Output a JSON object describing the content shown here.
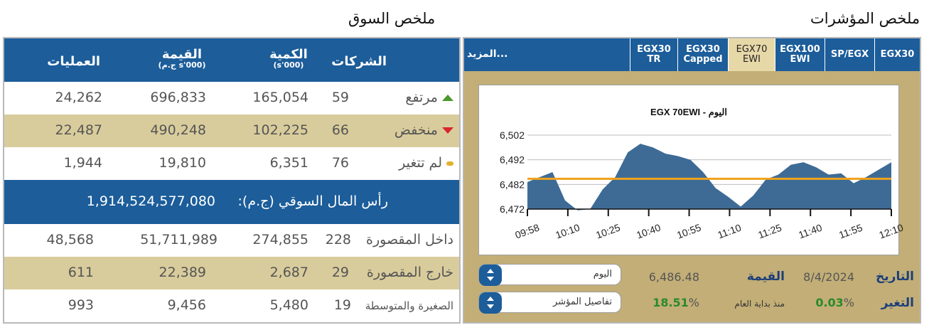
{
  "market_summary": {
    "title": "ملخص السوق",
    "headers": {
      "companies": "الشركات",
      "volume": "الكمية",
      "volume_unit": "(s'000)",
      "value": "القيمة",
      "value_unit": "(ج.م s'000)",
      "trades": "العمليات"
    },
    "rows": [
      {
        "label": "مرتفع",
        "companies": "59",
        "volume": "165,054",
        "value": "696,833",
        "trades": "24,262"
      },
      {
        "label": "منخفض",
        "companies": "66",
        "volume": "102,225",
        "value": "490,248",
        "trades": "22,487"
      },
      {
        "label": "لم تتغير",
        "companies": "76",
        "volume": "6,351",
        "value": "19,810",
        "trades": "1,944"
      }
    ],
    "market_cap_label": "رأس المال السوقي (ج.م):",
    "market_cap_value": "1,914,524,577,080",
    "segments": [
      {
        "label": "داخل المقصورة",
        "companies": "228",
        "volume": "274,855",
        "value": "51,711,989",
        "trades": "48,568"
      },
      {
        "label": "خارج المقصورة",
        "companies": "29",
        "volume": "2,687",
        "value": "22,389",
        "trades": "611"
      },
      {
        "label": "الصغيرة والمتوسطة",
        "companies": "19",
        "volume": "5,480",
        "value": "9,456",
        "trades": "993"
      }
    ]
  },
  "indices_summary": {
    "title": "ملخص المؤشرات",
    "tabs": [
      {
        "line1": "EGX30",
        "line2": ""
      },
      {
        "line1": "SP/EGX",
        "line2": ""
      },
      {
        "line1": "EGX100",
        "line2": "EWI"
      },
      {
        "line1": "EGX70",
        "line2": "EWI"
      },
      {
        "line1": "EGX30",
        "line2": "Capped"
      },
      {
        "line1": "EGX30",
        "line2": "TR"
      }
    ],
    "active_tab_index": 3,
    "more_label": "المزيد...",
    "period_select": "اليوم",
    "details_select": "تفاصيل المؤشر",
    "date_label": "التاريخ",
    "date_value": "8/4/2024",
    "value_label": "القيمة",
    "value_value": "6,486.48",
    "change_label": "التغير",
    "change_pct": "0.03",
    "ytd_label": "منذ بداية العام",
    "ytd_pct": "18.51",
    "pct_sign": "%",
    "colors": {
      "accent": "#1c5d9a",
      "gold_bg": "#c2ae76",
      "up": "#2a8a2a",
      "series_fill": "#3d6b96",
      "ref_line": "#f0a21a"
    }
  },
  "chart_data": {
    "type": "area",
    "title": "EGX 70EWI - اليوم",
    "x_ticks": [
      "09:58",
      "10:10",
      "10:25",
      "10:40",
      "10:55",
      "11:10",
      "11:25",
      "11:40",
      "11:55",
      "12:10"
    ],
    "y_ticks": [
      "6,502",
      "6,492",
      "6,482",
      "6,472"
    ],
    "ylim": [
      6472,
      6502
    ],
    "reference_value": 6484.3,
    "x": [
      "09:58",
      "10:03",
      "10:06",
      "10:10",
      "10:14",
      "10:18",
      "10:22",
      "10:27",
      "10:32",
      "10:37",
      "10:41",
      "10:46",
      "10:51",
      "10:56",
      "11:01",
      "11:06",
      "11:11",
      "11:16",
      "11:21",
      "11:26",
      "11:31",
      "11:36",
      "11:41",
      "11:46",
      "11:51",
      "11:56",
      "12:01",
      "12:06",
      "12:11",
      "12:16"
    ],
    "values": [
      6483.0,
      6485.0,
      6487.0,
      6475.5,
      6471.5,
      6472.0,
      6480.0,
      6485.0,
      6495.0,
      6498.5,
      6497.0,
      6494.5,
      6493.5,
      6492.0,
      6487.0,
      6480.5,
      6477.0,
      6473.0,
      6477.5,
      6484.0,
      6486.0,
      6490.0,
      6491.0,
      6489.0,
      6486.0,
      6486.5,
      6482.5,
      6485.0,
      6488.0,
      6491.0
    ]
  }
}
